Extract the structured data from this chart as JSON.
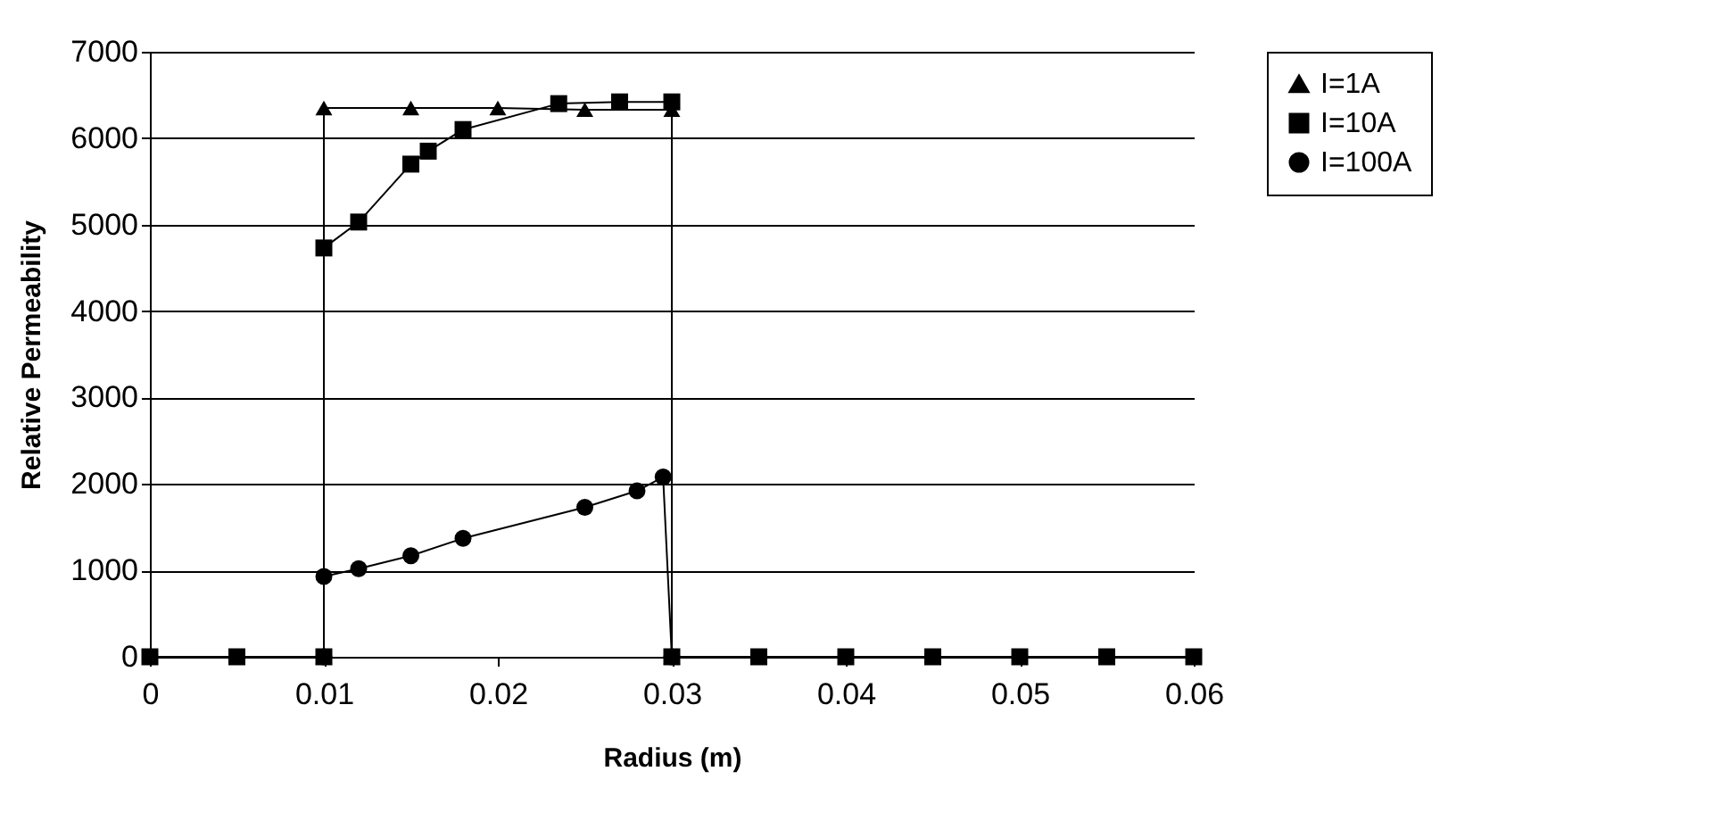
{
  "chart_data": {
    "type": "line",
    "xlabel": "Radius (m)",
    "ylabel": "Relative Permeability",
    "xlim": [
      0,
      0.06
    ],
    "xticks": [
      0,
      0.01,
      0.02,
      0.03,
      0.04,
      0.05,
      0.06
    ],
    "ylim": [
      0,
      7000
    ],
    "yticks": [
      0,
      1000,
      2000,
      3000,
      4000,
      5000,
      6000,
      7000
    ],
    "grid": "y",
    "legend": "right",
    "line_style": "solid",
    "series": [
      {
        "name": "I=1A",
        "color": "#000000",
        "marker": "triangle",
        "x": [
          0.01,
          0.01,
          0.015,
          0.02,
          0.025,
          0.03,
          0.03
        ],
        "values": [
          0,
          6350,
          6350,
          6350,
          6330,
          6330,
          0
        ]
      },
      {
        "name": "I=10A",
        "color": "#000000",
        "marker": "square",
        "x": [
          0,
          0.005,
          0.01,
          0.01,
          0.012,
          0.015,
          0.016,
          0.018,
          0.0235,
          0.027,
          0.03,
          0.03,
          0.035,
          0.04,
          0.045,
          0.05,
          0.055,
          0.06
        ],
        "values": [
          0,
          0,
          0,
          4730,
          5030,
          5700,
          5850,
          6100,
          6400,
          6420,
          6420,
          0,
          0,
          0,
          0,
          0,
          0,
          0
        ]
      },
      {
        "name": "I=100A",
        "color": "#000000",
        "marker": "circle",
        "x": [
          0.01,
          0.01,
          0.012,
          0.015,
          0.018,
          0.025,
          0.028,
          0.0295,
          0.03
        ],
        "values": [
          0,
          930,
          1020,
          1170,
          1370,
          1730,
          1920,
          2080,
          0
        ]
      }
    ]
  }
}
